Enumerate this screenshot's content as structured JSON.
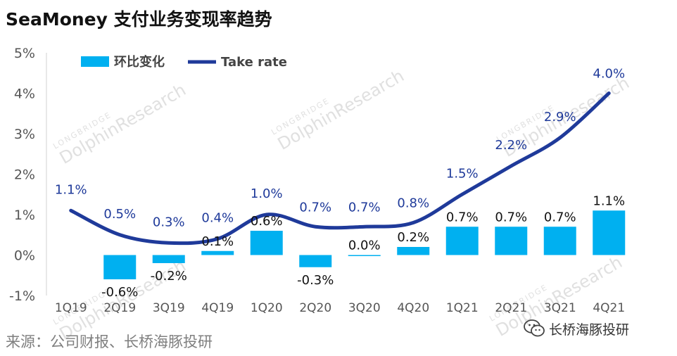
{
  "title": "SeaMoney 支付业务变现率趋势",
  "source": "来源：公司财报、长桥海豚投研",
  "brand": {
    "name": "长桥海豚投研",
    "icon": "wechat-icon"
  },
  "watermark": {
    "small": "LONGBRIDGE",
    "big": "DolphinResearch"
  },
  "colors": {
    "bar": "#00b0f0",
    "line": "#1f3a9a",
    "line_label": "#1f3a9a"
  },
  "chart_data": {
    "type": "bar+line",
    "categories": [
      "1Q19",
      "2Q19",
      "3Q19",
      "4Q19",
      "1Q20",
      "2Q20",
      "3Q20",
      "4Q20",
      "1Q21",
      "2Q21",
      "3Q21",
      "4Q21"
    ],
    "series": [
      {
        "name": "环比变化",
        "type": "bar",
        "values": [
          null,
          -0.6,
          -0.2,
          0.1,
          0.6,
          -0.3,
          0.0,
          0.2,
          0.7,
          0.7,
          0.7,
          1.1
        ],
        "labels": [
          "",
          "-0.6%",
          "-0.2%",
          "0.1%",
          "0.6%",
          "-0.3%",
          "0.0%",
          "0.2%",
          "0.7%",
          "0.7%",
          "0.7%",
          "1.1%"
        ]
      },
      {
        "name": "Take rate",
        "type": "line",
        "values": [
          1.1,
          0.5,
          0.3,
          0.4,
          1.0,
          0.7,
          0.7,
          0.8,
          1.5,
          2.2,
          2.9,
          4.0
        ],
        "labels": [
          "1.1%",
          "0.5%",
          "0.3%",
          "0.4%",
          "1.0%",
          "0.7%",
          "0.7%",
          "0.8%",
          "1.5%",
          "2.2%",
          "2.9%",
          "4.0%"
        ]
      }
    ],
    "yticks": [
      5,
      4,
      3,
      2,
      1,
      0,
      -1
    ],
    "ytick_labels": [
      "5%",
      "4%",
      "3%",
      "2%",
      "1%",
      "0%",
      "-1%"
    ],
    "ylim": [
      -1,
      5
    ],
    "grid": false,
    "legend": "top-left"
  }
}
